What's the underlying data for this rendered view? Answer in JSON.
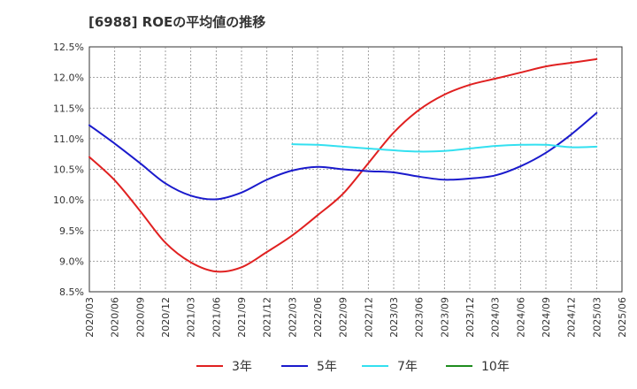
{
  "chart_data": {
    "type": "line",
    "title": "[6988]  ROEの平均値の推移",
    "xlabel": "",
    "ylabel": "",
    "ylim": [
      8.5,
      12.5
    ],
    "y_ticks": [
      "12.5%",
      "12.0%",
      "11.5%",
      "11.0%",
      "10.5%",
      "10.0%",
      "9.5%",
      "9.0%",
      "8.5%"
    ],
    "y_tick_values": [
      12.5,
      12.0,
      11.5,
      11.0,
      10.5,
      10.0,
      9.5,
      9.0,
      8.5
    ],
    "categories": [
      "2020/03",
      "2020/06",
      "2020/09",
      "2020/12",
      "2021/03",
      "2021/06",
      "2021/09",
      "2021/12",
      "2022/03",
      "2022/06",
      "2022/09",
      "2022/12",
      "2023/03",
      "2023/06",
      "2023/09",
      "2023/12",
      "2024/03",
      "2024/06",
      "2024/09",
      "2024/12",
      "2025/03",
      "2025/06"
    ],
    "grid": true,
    "legend_position": "bottom",
    "series": [
      {
        "name": "3年",
        "color": "#e02020",
        "values": [
          10.7,
          10.32,
          9.82,
          9.3,
          8.98,
          8.83,
          8.9,
          9.15,
          9.42,
          9.75,
          10.1,
          10.6,
          11.1,
          11.47,
          11.72,
          11.88,
          11.98,
          12.08,
          12.18,
          12.24,
          12.3,
          null
        ]
      },
      {
        "name": "5年",
        "color": "#1a1acc",
        "values": [
          11.22,
          10.92,
          10.6,
          10.27,
          10.07,
          10.01,
          10.12,
          10.33,
          10.48,
          10.54,
          10.5,
          10.47,
          10.45,
          10.38,
          10.33,
          10.35,
          10.4,
          10.55,
          10.77,
          11.07,
          11.42,
          null
        ]
      },
      {
        "name": "7年",
        "color": "#33e0f0",
        "values": [
          null,
          null,
          null,
          null,
          null,
          null,
          null,
          null,
          10.91,
          10.9,
          10.87,
          10.84,
          10.81,
          10.79,
          10.8,
          10.84,
          10.88,
          10.9,
          10.9,
          10.86,
          10.87,
          null
        ]
      },
      {
        "name": "10年",
        "color": "#1e8c1e",
        "values": [
          null,
          null,
          null,
          null,
          null,
          null,
          null,
          null,
          null,
          null,
          null,
          null,
          null,
          null,
          null,
          null,
          null,
          null,
          null,
          null,
          null,
          null
        ]
      }
    ]
  }
}
